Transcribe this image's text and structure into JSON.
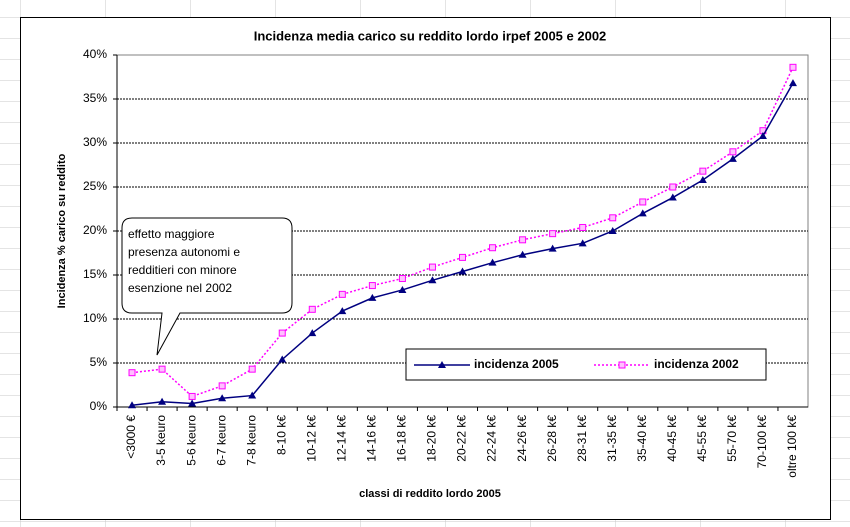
{
  "chart_data": {
    "type": "line",
    "title": "Incidenza media carico su reddito lordo irpef 2005 e 2002",
    "y_label": "Incidenza % carico su reddito",
    "x_label": "classi di reddito lordo 2005",
    "annotation": [
      "effetto maggiore",
      "presenza autonomi e",
      "redditieri con minore",
      "esenzione nel 2002"
    ],
    "categories": [
      "<3000 €",
      "3-5 keuro",
      "5-6 keuro",
      "6-7 keuro",
      "7-8 keuro",
      "8-10 k€",
      "10-12 k€",
      "12-14 k€",
      "14-16 k€",
      "16-18 k€",
      "18-20 k€",
      "20-22 k€",
      "22-24 k€",
      "24-26 k€",
      "26-28 k€",
      "28-31 k€",
      "31-35 k€",
      "35-40 k€",
      "40-45 k€",
      "45-55 k€",
      "55-70 k€",
      "70-100 k€",
      "oltre 100 k€"
    ],
    "series": [
      {
        "name": "incidenza 2005",
        "color": "#000080",
        "marker": "triangle",
        "dash": "solid",
        "values": [
          0.2,
          0.6,
          0.4,
          1.0,
          1.3,
          5.4,
          8.4,
          10.9,
          12.4,
          13.3,
          14.4,
          15.4,
          16.4,
          17.3,
          18.0,
          18.6,
          20.0,
          22.0,
          23.8,
          25.8,
          28.2,
          30.8,
          36.8
        ]
      },
      {
        "name": "incidenza 2002",
        "color": "#ff00ff",
        "marker": "square",
        "dash": "dotted",
        "values": [
          3.9,
          4.3,
          1.2,
          2.4,
          4.3,
          8.4,
          11.1,
          12.8,
          13.8,
          14.6,
          15.9,
          17.0,
          18.1,
          19.0,
          19.7,
          20.4,
          21.5,
          23.3,
          25.0,
          26.8,
          29.0,
          31.4,
          38.6
        ]
      }
    ],
    "ylim": [
      0,
      40
    ],
    "yticks": [
      {
        "value": 0,
        "label": "0%"
      },
      {
        "value": 5,
        "label": "5%"
      },
      {
        "value": 10,
        "label": "10%"
      },
      {
        "value": 15,
        "label": "15%"
      },
      {
        "value": 20,
        "label": "20%"
      },
      {
        "value": 25,
        "label": "25%"
      },
      {
        "value": 30,
        "label": "30%"
      },
      {
        "value": 35,
        "label": "35%"
      },
      {
        "value": 40,
        "label": "40%"
      }
    ],
    "grid": true
  }
}
